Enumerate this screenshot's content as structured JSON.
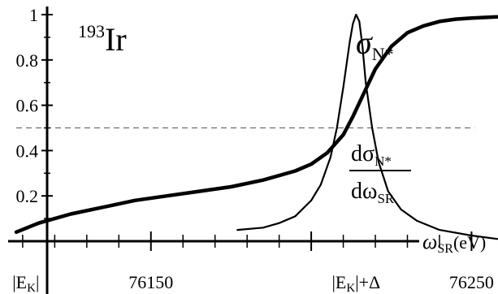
{
  "chart_data": {
    "type": "line",
    "xlabel_main": "ω",
    "xlabel_sub": "SR",
    "xlabel_unit": "(eV)",
    "annotation_main": "Ir",
    "annotation_sup": "193",
    "y_ticks": [
      {
        "value": 0.2,
        "label": "0.2"
      },
      {
        "value": 0.4,
        "label": "0.4"
      },
      {
        "value": 0.6,
        "label": "0.6"
      },
      {
        "value": 0.8,
        "label": "0.8"
      },
      {
        "value": 1.0,
        "label": "1"
      }
    ],
    "x_ticks": [
      {
        "value": 76111,
        "label": "|E"
      },
      {
        "value": 76150,
        "label": "76150"
      },
      {
        "value": 76214,
        "label": "|E"
      },
      {
        "value": 76250,
        "label": "76250"
      }
    ],
    "x_tick_label_parts": {
      "ek_sub": "K",
      "ek_close": "|",
      "delta_close": "|+Δ"
    },
    "xlim": [
      76108,
      76258
    ],
    "ylim": [
      0,
      1.0
    ],
    "reference_line": {
      "y": 0.5,
      "x_range": [
        76108,
        76251
      ],
      "style": "dashed"
    },
    "series": [
      {
        "name_main": "σ",
        "name_sub": "N*",
        "style": "thick",
        "x": [
          76108,
          76115,
          76125,
          76135,
          76145,
          76155,
          76165,
          76175,
          76185,
          76195,
          76200,
          76205,
          76210,
          76213,
          76216,
          76220,
          76225,
          76230,
          76235,
          76240,
          76245,
          76250,
          76258
        ],
        "y": [
          0.04,
          0.08,
          0.12,
          0.15,
          0.18,
          0.2,
          0.22,
          0.24,
          0.27,
          0.31,
          0.34,
          0.39,
          0.47,
          0.55,
          0.64,
          0.76,
          0.86,
          0.92,
          0.95,
          0.97,
          0.98,
          0.985,
          0.99
        ]
      },
      {
        "name_num_main": "dσ",
        "name_num_sub": "N*",
        "name_den_main": "dω",
        "name_den_sub": "SR",
        "style": "thin",
        "x": [
          76177,
          76185,
          76190,
          76195,
          76200,
          76203,
          76206,
          76208,
          76210,
          76212,
          76213,
          76214,
          76215,
          76216,
          76217,
          76219,
          76221,
          76224,
          76228,
          76233,
          76240,
          76250,
          76258
        ],
        "y": [
          0.05,
          0.06,
          0.08,
          0.11,
          0.18,
          0.25,
          0.37,
          0.5,
          0.68,
          0.88,
          0.96,
          1.0,
          0.97,
          0.86,
          0.7,
          0.5,
          0.35,
          0.22,
          0.14,
          0.09,
          0.05,
          0.025,
          0.01
        ]
      }
    ]
  }
}
